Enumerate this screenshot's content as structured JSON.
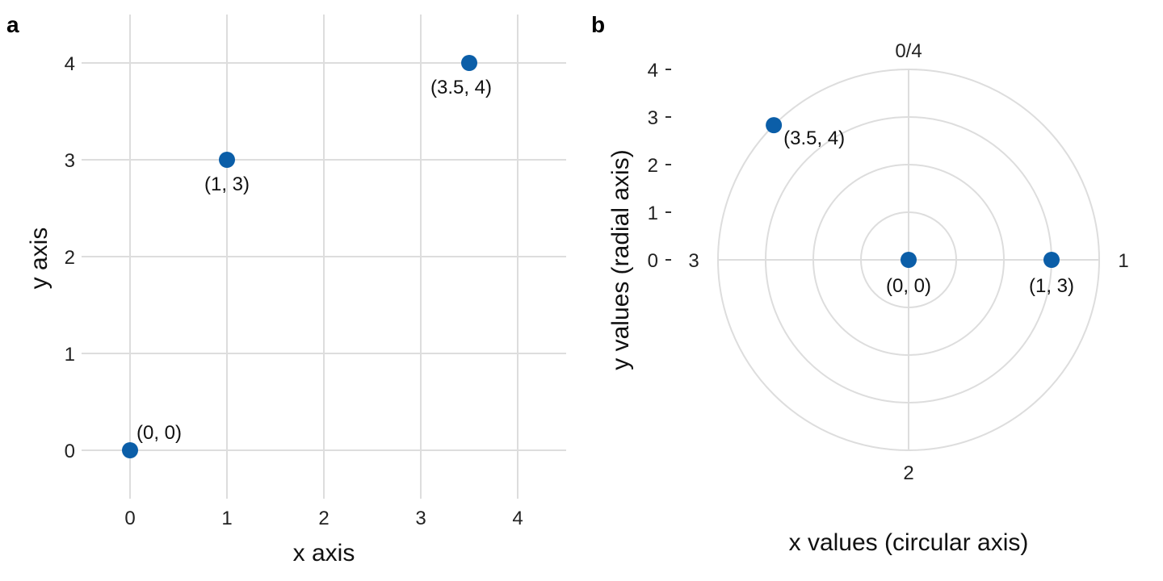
{
  "colors": {
    "point": "#0b5ea8",
    "grid": "#dddddd"
  },
  "chart_data": [
    {
      "panel": "a",
      "type": "scatter",
      "xlabel": "x axis",
      "ylabel": "y axis",
      "xlim": [
        -0.5,
        4.5
      ],
      "ylim": [
        -0.5,
        4.5
      ],
      "x_ticks": [
        "0",
        "1",
        "2",
        "3",
        "4"
      ],
      "y_ticks": [
        "0",
        "1",
        "2",
        "3",
        "4"
      ],
      "grid": true,
      "points": [
        {
          "x": 0,
          "y": 0,
          "label": "(0, 0)"
        },
        {
          "x": 1,
          "y": 3,
          "label": "(1, 3)"
        },
        {
          "x": 3.5,
          "y": 4,
          "label": "(3.5, 4)"
        }
      ]
    },
    {
      "panel": "b",
      "type": "scatter",
      "coordinate_system": "polar",
      "xlabel": "x values (circular axis)",
      "ylabel": "y values (radial axis)",
      "theta_period": 4,
      "r_max": 4,
      "radial_ticks": [
        "0",
        "1",
        "2",
        "3",
        "4"
      ],
      "angle_ticks": [
        "0/4",
        "1",
        "2",
        "3"
      ],
      "grid": true,
      "points": [
        {
          "x": 0,
          "y": 0,
          "label": "(0, 0)"
        },
        {
          "x": 1,
          "y": 3,
          "label": "(1, 3)"
        },
        {
          "x": 3.5,
          "y": 4,
          "label": "(3.5, 4)"
        }
      ]
    }
  ]
}
